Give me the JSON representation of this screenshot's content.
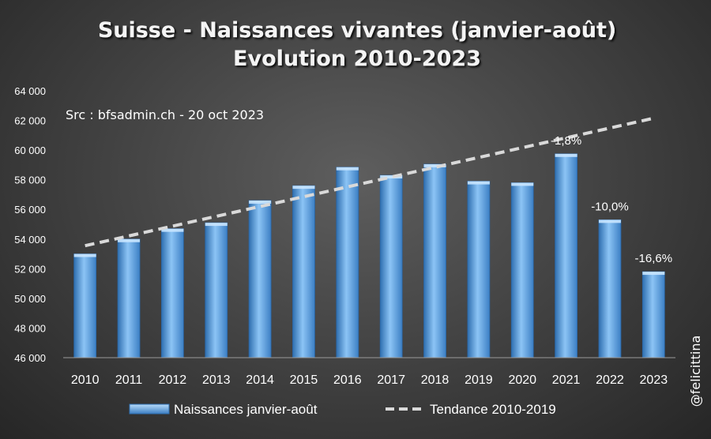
{
  "chart_data": {
    "type": "bar",
    "title": "Suisse - Naissances vivantes (janvier-août)",
    "subtitle": "Evolution 2010-2023",
    "source_note": "Src : bfsadmin.ch - 20 oct 2023",
    "credit": "@felicittina",
    "categories": [
      "2010",
      "2011",
      "2012",
      "2013",
      "2014",
      "2015",
      "2016",
      "2017",
      "2018",
      "2019",
      "2020",
      "2021",
      "2022",
      "2023"
    ],
    "series": [
      {
        "name": "Naissances janvier-août",
        "values": [
          53000,
          54000,
          54700,
          55100,
          56600,
          57600,
          58850,
          58300,
          59050,
          57900,
          57800,
          59750,
          55300,
          51800
        ],
        "color": "#5b9bd5"
      }
    ],
    "trend": {
      "name": "Tendance 2010-2019",
      "start": [
        2010,
        53550
      ],
      "end": [
        2023,
        62150
      ],
      "color": "#d9d9d9",
      "style": "dashed"
    },
    "annotations": [
      {
        "category": "2021",
        "text": "-1,8%"
      },
      {
        "category": "2022",
        "text": "-10,0%"
      },
      {
        "category": "2023",
        "text": "-16,6%"
      }
    ],
    "yticks": [
      46000,
      48000,
      50000,
      52000,
      54000,
      56000,
      58000,
      60000,
      62000,
      64000
    ],
    "ytick_labels": [
      "46 000",
      "48 000",
      "50 000",
      "52 000",
      "54 000",
      "56 000",
      "58 000",
      "60 000",
      "62 000",
      "64 000"
    ],
    "ylim": [
      46000,
      64000
    ],
    "grid": false,
    "legend_position": "bottom",
    "background_color": "#404040",
    "text_color": "#ffffff"
  }
}
